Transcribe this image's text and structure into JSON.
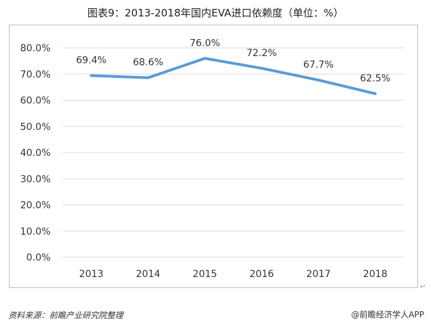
{
  "page": {
    "footer_source": "资料来源：前瞻产业研究院整理",
    "footer_brand": "@前瞻经济学人APP",
    "return_mark": "↵"
  },
  "chart_data": {
    "type": "line",
    "title": "图表9：2013-2018年国内EVA进口依赖度（单位：%）",
    "xlabel": "",
    "ylabel": "",
    "categories": [
      "2013",
      "2014",
      "2015",
      "2016",
      "2017",
      "2018"
    ],
    "values": [
      69.4,
      68.6,
      76.0,
      72.2,
      67.7,
      62.5
    ],
    "data_labels": [
      "69.4%",
      "68.6%",
      "76.0%",
      "72.2%",
      "67.7%",
      "62.5%"
    ],
    "ylim": [
      0,
      80
    ],
    "yticks": [
      0,
      10,
      20,
      30,
      40,
      50,
      60,
      70,
      80
    ],
    "ytick_labels": [
      "0.0%",
      "10.0%",
      "20.0%",
      "30.0%",
      "40.0%",
      "50.0%",
      "60.0%",
      "70.0%",
      "80.0%"
    ],
    "grid": true,
    "line_color": "#5b9bd5",
    "grid_color": "#d9d9d9"
  }
}
